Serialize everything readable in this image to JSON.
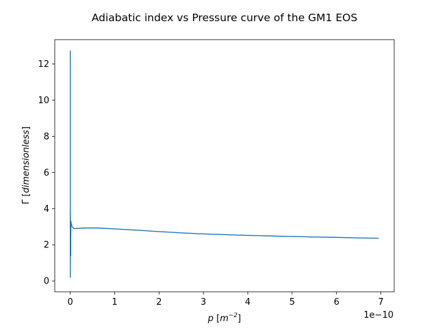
{
  "chart_data": {
    "type": "line",
    "title": "Adiabatic index vs Pressure curve of the GM1 EOS",
    "xlabel_symbol": "p",
    "xlabel_unit_base": "m",
    "xlabel_unit_exp": "−2",
    "ylabel_symbol": "Γ",
    "ylabel_unit": "dimensionless",
    "x_offset_text": "1e−10",
    "x_scale": 1e-10,
    "xlim": [
      -3.5e-11,
      7.3e-10
    ],
    "ylim": [
      -0.6,
      13.35
    ],
    "xticks": [
      0,
      1e-10,
      2e-10,
      3e-10,
      4e-10,
      5e-10,
      6e-10,
      7e-10
    ],
    "xtick_labels": [
      "0",
      "1",
      "2",
      "3",
      "4",
      "5",
      "6",
      "7"
    ],
    "yticks": [
      0,
      2,
      4,
      6,
      8,
      10,
      12
    ],
    "ytick_labels": [
      "0",
      "2",
      "4",
      "6",
      "8",
      "10",
      "12"
    ],
    "series": [
      {
        "color": "#1f77b4",
        "x": [
          0,
          0,
          0,
          0,
          1e-12,
          1e-12,
          1.5e-12,
          2e-12,
          3e-12,
          4e-12,
          6e-12,
          8e-12,
          1.5e-11,
          3e-11,
          6e-11,
          1e-10,
          1.5e-10,
          2e-10,
          2.5e-10,
          3e-10,
          3.5e-10,
          4e-10,
          4.5e-10,
          5e-10,
          5.5e-10,
          6e-10,
          6.5e-10,
          6.95e-10
        ],
        "y": [
          12.75,
          6.0,
          0.2,
          4.0,
          1.4,
          2.3,
          3.3,
          3.2,
          3.1,
          3.0,
          2.95,
          2.9,
          2.9,
          2.93,
          2.93,
          2.88,
          2.81,
          2.73,
          2.66,
          2.6,
          2.56,
          2.52,
          2.49,
          2.46,
          2.43,
          2.41,
          2.38,
          2.36
        ]
      }
    ]
  }
}
